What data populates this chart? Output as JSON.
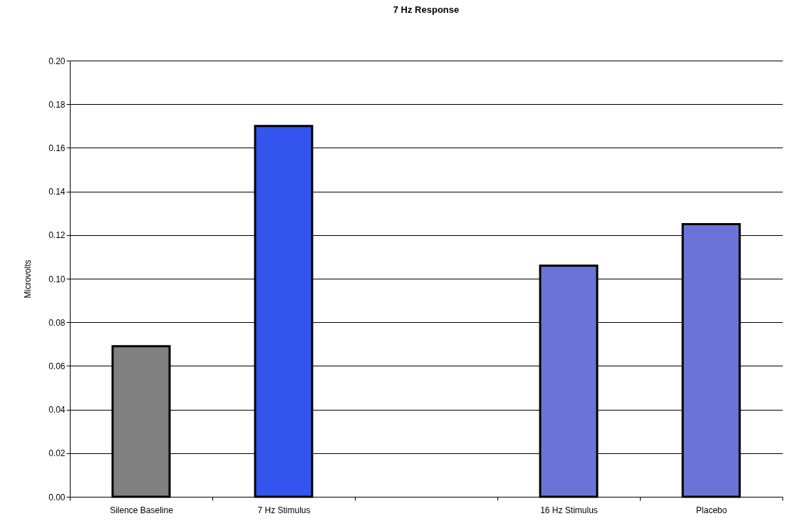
{
  "chart_data": {
    "type": "bar",
    "title": "7 Hz Response",
    "ylabel": "Microvolts",
    "categories": [
      "Silence Baseline",
      "7 Hz Stimulus",
      null,
      "16 Hz Stimulus",
      "Placebo"
    ],
    "values": [
      0.069,
      0.17,
      null,
      0.106,
      0.125
    ],
    "colors": [
      "#808080",
      "#3355ee",
      "#ffffff",
      "#6b74d6",
      "#6b74d6"
    ],
    "ylim": [
      0,
      0.2
    ],
    "yticks": [
      {
        "value": 0,
        "label": "0.00"
      },
      0.02,
      0.04,
      0.06,
      0.08,
      {
        "value": 0.1,
        "label": "0.10"
      },
      0.12,
      0.14,
      0.16,
      0.18,
      {
        "value": 0.2,
        "label": "0.20"
      }
    ],
    "grid": "y"
  }
}
